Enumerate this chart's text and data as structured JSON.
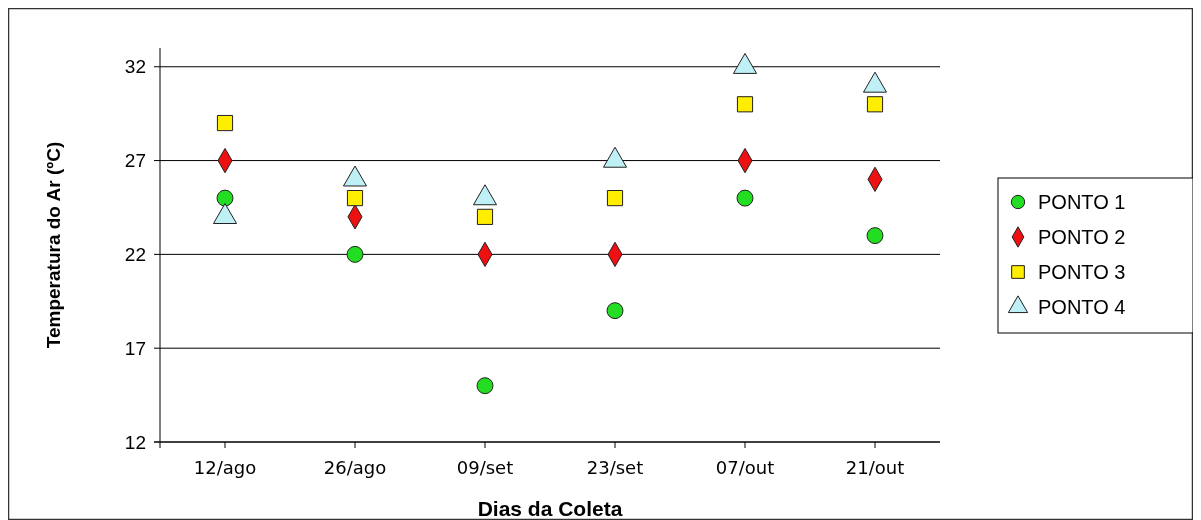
{
  "chart_data": {
    "type": "scatter",
    "xlabel": "Dias da Coleta",
    "ylabel": "Temperatura do Ar (ºC)",
    "categories": [
      "12/ago",
      "26/ago",
      "09/set",
      "23/set",
      "07/out",
      "21/out"
    ],
    "series": [
      {
        "name": "PONTO 1",
        "color": "#22dd22",
        "marker": "circle",
        "values": [
          25,
          22,
          15,
          19,
          25,
          23
        ]
      },
      {
        "name": "PONTO 2",
        "color": "#ee1111",
        "marker": "diamond",
        "values": [
          27,
          24,
          22,
          22,
          27,
          26
        ]
      },
      {
        "name": "PONTO 3",
        "color": "#ffee00",
        "marker": "square",
        "values": [
          29,
          25,
          24,
          25,
          30,
          30
        ]
      },
      {
        "name": "PONTO 4",
        "color": "#bff0f5",
        "marker": "triangle",
        "values": [
          24,
          26,
          25,
          27,
          32,
          31
        ]
      }
    ],
    "ylim": [
      12,
      33
    ],
    "yticks": [
      12,
      17,
      22,
      27,
      32
    ],
    "grid": "y",
    "legend": "right"
  }
}
